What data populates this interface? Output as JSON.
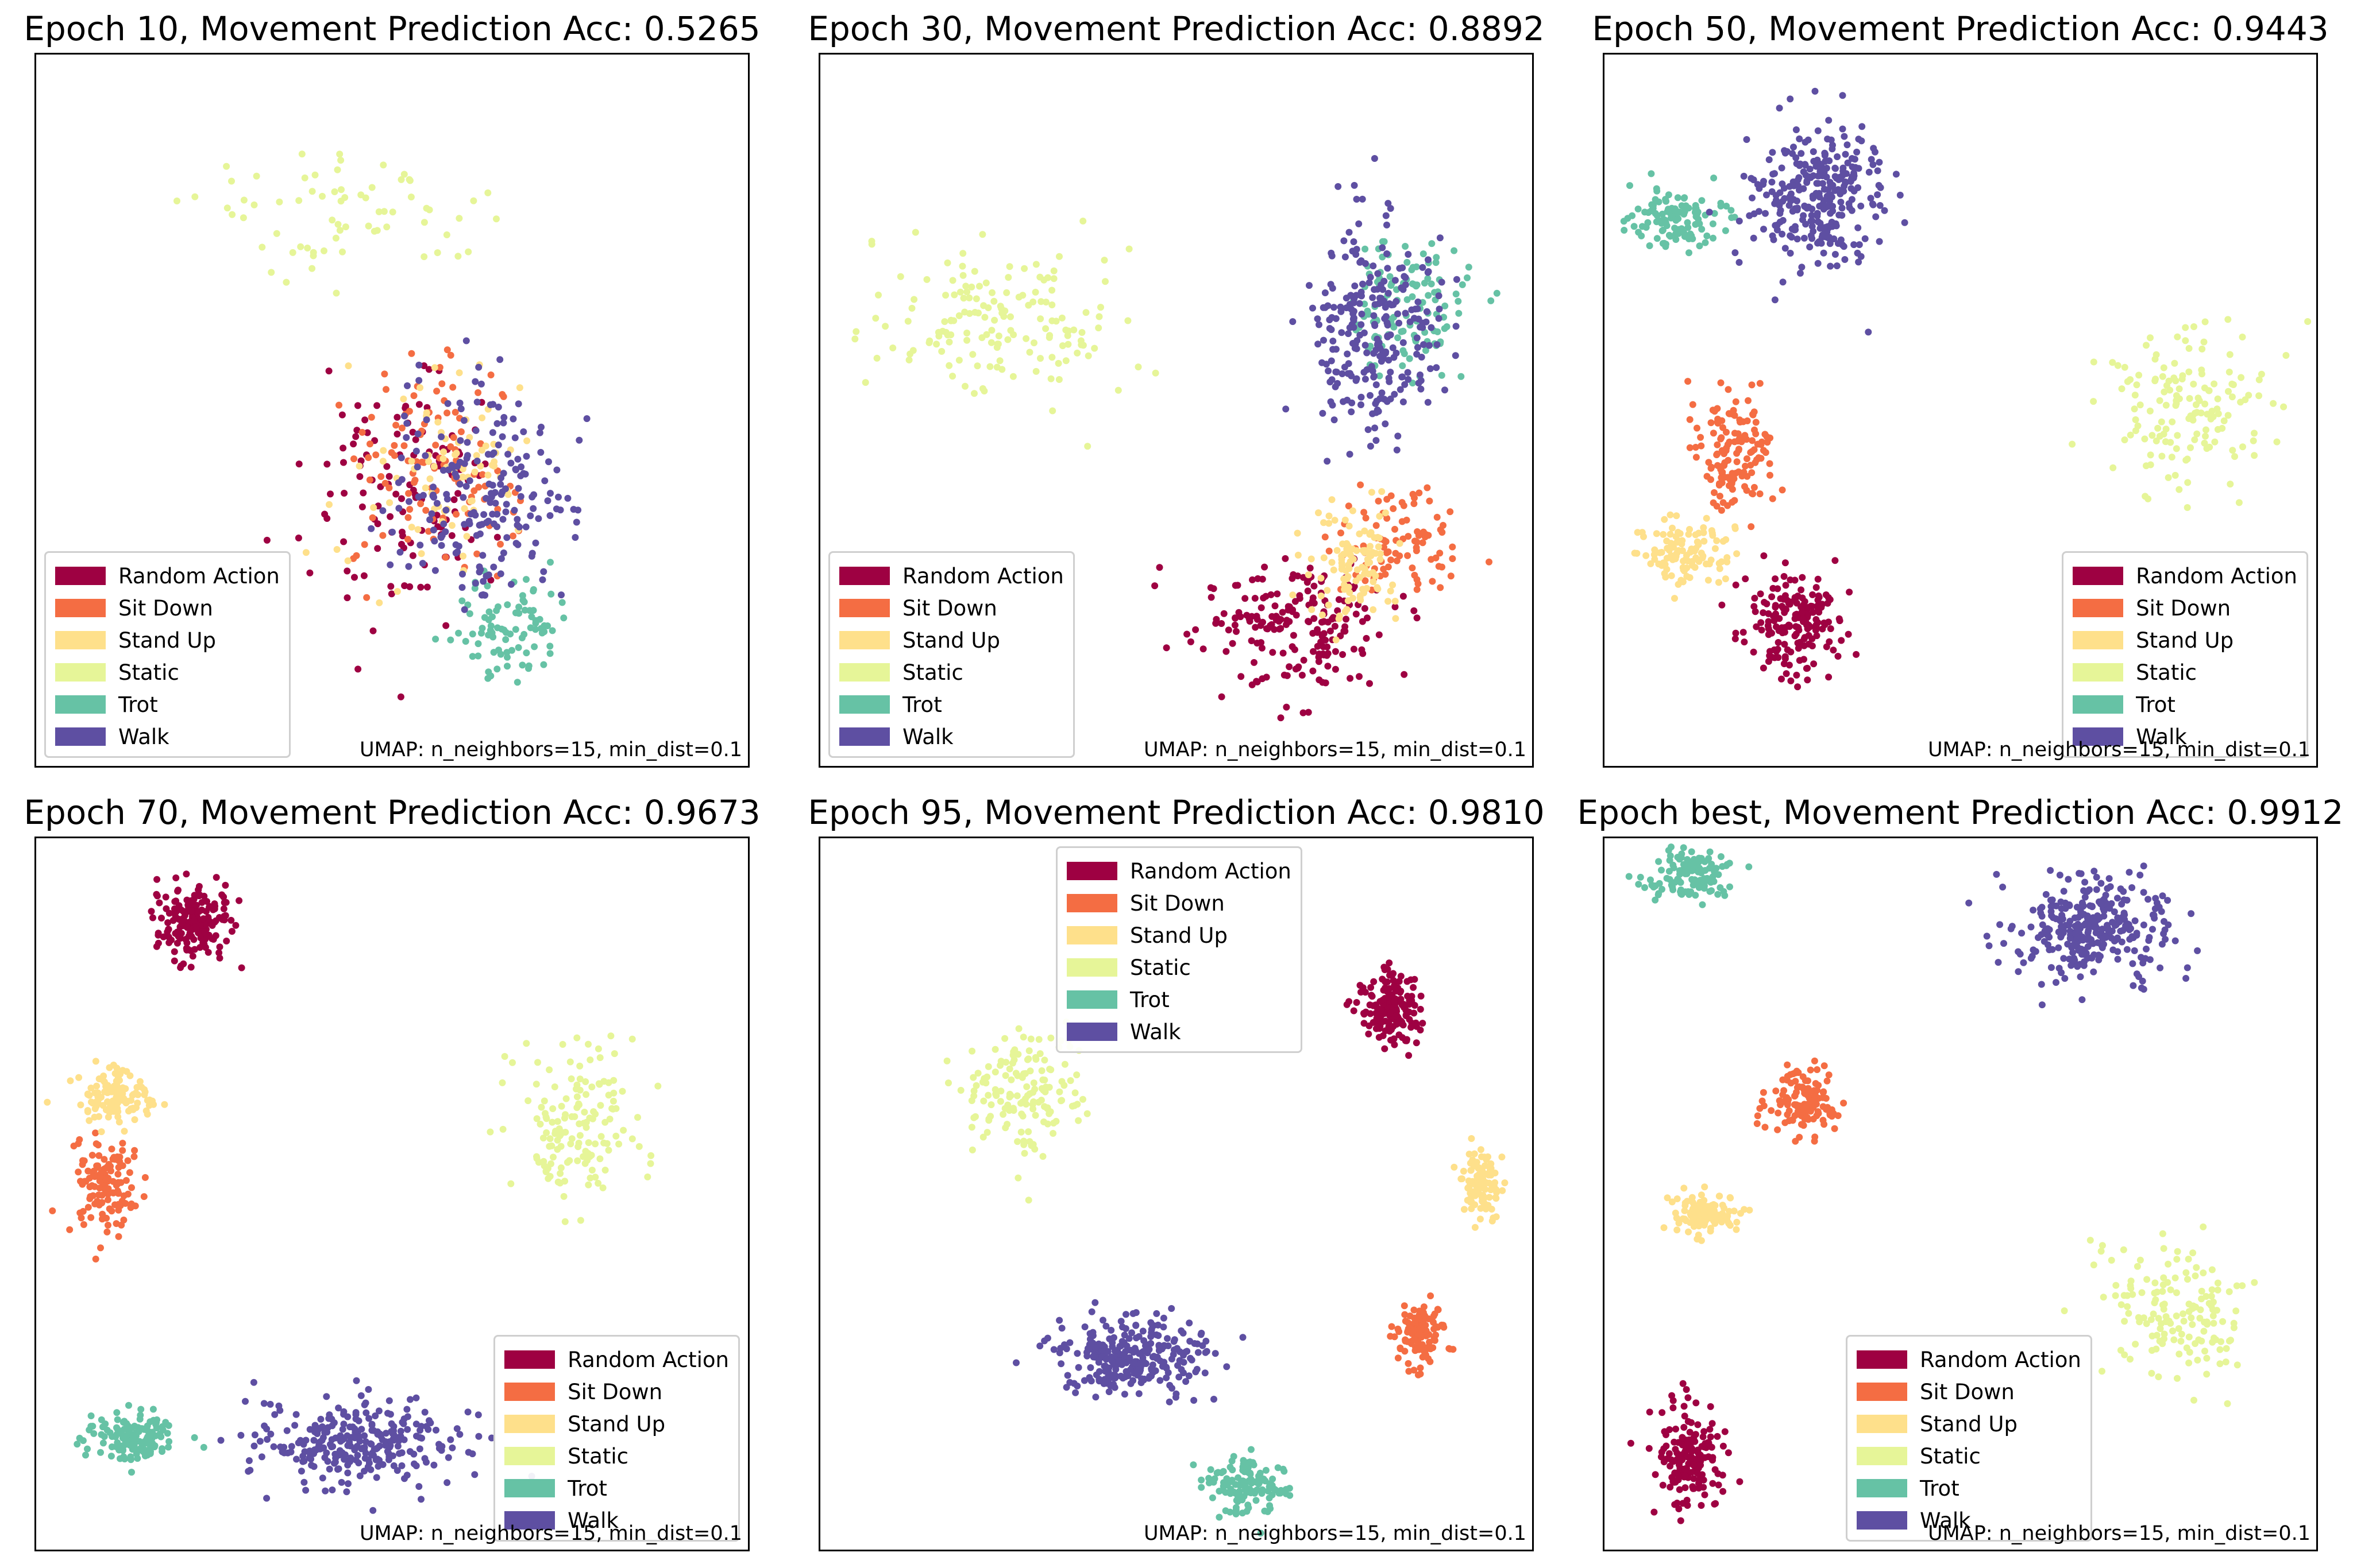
{
  "figure": {
    "footnote": "UMAP: n_neighbors=15, min_dist=0.1"
  },
  "legend": [
    {
      "label": "Random Action",
      "color": "#9e0142"
    },
    {
      "label": "Sit Down",
      "color": "#f46d43"
    },
    {
      "label": "Stand Up",
      "color": "#fee08b"
    },
    {
      "label": "Static",
      "color": "#e6f598"
    },
    {
      "label": "Trot",
      "color": "#66c2a5"
    },
    {
      "label": "Walk",
      "color": "#5e4fa2"
    }
  ],
  "chart_data": [
    {
      "type": "scatter",
      "title": "Epoch 10, Movement Prediction Acc: 0.5265",
      "epoch": "10",
      "accuracy": 0.5265,
      "legend_position": "lower-left",
      "grid": false,
      "clusters": [
        {
          "class": "Random Action",
          "center": [
            0.53,
            0.62
          ],
          "spread": [
            0.12,
            0.16
          ],
          "count": 120
        },
        {
          "class": "Sit Down",
          "center": [
            0.55,
            0.58
          ],
          "spread": [
            0.13,
            0.15
          ],
          "count": 110
        },
        {
          "class": "Stand Up",
          "center": [
            0.58,
            0.6
          ],
          "spread": [
            0.12,
            0.15
          ],
          "count": 80
        },
        {
          "class": "Static",
          "center": [
            0.45,
            0.22
          ],
          "spread": [
            0.2,
            0.1
          ],
          "count": 70
        },
        {
          "class": "Trot",
          "center": [
            0.66,
            0.8
          ],
          "spread": [
            0.08,
            0.06
          ],
          "count": 90
        },
        {
          "class": "Walk",
          "center": [
            0.62,
            0.62
          ],
          "spread": [
            0.12,
            0.14
          ],
          "count": 200
        }
      ]
    },
    {
      "type": "scatter",
      "title": "Epoch 30, Movement Prediction Acc: 0.8892",
      "epoch": "30",
      "accuracy": 0.8892,
      "legend_position": "lower-left",
      "grid": false,
      "clusters": [
        {
          "class": "Random Action",
          "center": [
            0.67,
            0.8
          ],
          "spread": [
            0.12,
            0.08
          ],
          "count": 200
        },
        {
          "class": "Sit Down",
          "center": [
            0.82,
            0.68
          ],
          "spread": [
            0.08,
            0.07
          ],
          "count": 90
        },
        {
          "class": "Stand Up",
          "center": [
            0.75,
            0.72
          ],
          "spread": [
            0.07,
            0.08
          ],
          "count": 110
        },
        {
          "class": "Static",
          "center": [
            0.25,
            0.38
          ],
          "spread": [
            0.16,
            0.1
          ],
          "count": 160
        },
        {
          "class": "Trot",
          "center": [
            0.82,
            0.35
          ],
          "spread": [
            0.08,
            0.1
          ],
          "count": 120
        },
        {
          "class": "Walk",
          "center": [
            0.78,
            0.38
          ],
          "spread": [
            0.08,
            0.14
          ],
          "count": 260
        }
      ]
    },
    {
      "type": "scatter",
      "title": "Epoch 50, Movement Prediction Acc: 0.9443",
      "epoch": "50",
      "accuracy": 0.9443,
      "legend_position": "lower-right",
      "grid": false,
      "clusters": [
        {
          "class": "Random Action",
          "center": [
            0.27,
            0.8
          ],
          "spread": [
            0.06,
            0.07
          ],
          "count": 180
        },
        {
          "class": "Sit Down",
          "center": [
            0.18,
            0.55
          ],
          "spread": [
            0.05,
            0.08
          ],
          "count": 140
        },
        {
          "class": "Stand Up",
          "center": [
            0.11,
            0.7
          ],
          "spread": [
            0.06,
            0.05
          ],
          "count": 110
        },
        {
          "class": "Static",
          "center": [
            0.82,
            0.5
          ],
          "spread": [
            0.1,
            0.1
          ],
          "count": 150
        },
        {
          "class": "Trot",
          "center": [
            0.1,
            0.23
          ],
          "spread": [
            0.06,
            0.04
          ],
          "count": 110
        },
        {
          "class": "Walk",
          "center": [
            0.3,
            0.2
          ],
          "spread": [
            0.09,
            0.09
          ],
          "count": 300
        }
      ]
    },
    {
      "type": "scatter",
      "title": "Epoch 70, Movement Prediction Acc: 0.9673",
      "epoch": "70",
      "accuracy": 0.9673,
      "legend_position": "lower-right",
      "grid": false,
      "clusters": [
        {
          "class": "Random Action",
          "center": [
            0.22,
            0.12
          ],
          "spread": [
            0.05,
            0.05
          ],
          "count": 180
        },
        {
          "class": "Sit Down",
          "center": [
            0.1,
            0.49
          ],
          "spread": [
            0.04,
            0.06
          ],
          "count": 130
        },
        {
          "class": "Stand Up",
          "center": [
            0.11,
            0.36
          ],
          "spread": [
            0.05,
            0.04
          ],
          "count": 120
        },
        {
          "class": "Static",
          "center": [
            0.76,
            0.4
          ],
          "spread": [
            0.07,
            0.1
          ],
          "count": 150
        },
        {
          "class": "Trot",
          "center": [
            0.14,
            0.84
          ],
          "spread": [
            0.06,
            0.03
          ],
          "count": 140
        },
        {
          "class": "Walk",
          "center": [
            0.45,
            0.85
          ],
          "spread": [
            0.13,
            0.06
          ],
          "count": 280
        }
      ]
    },
    {
      "type": "scatter",
      "title": "Epoch 95, Movement Prediction Acc: 0.9810",
      "epoch": "95",
      "accuracy": 0.981,
      "legend_position": "upper-center",
      "grid": false,
      "clusters": [
        {
          "class": "Random Action",
          "center": [
            0.8,
            0.24
          ],
          "spread": [
            0.04,
            0.05
          ],
          "count": 170
        },
        {
          "class": "Sit Down",
          "center": [
            0.84,
            0.7
          ],
          "spread": [
            0.03,
            0.04
          ],
          "count": 120
        },
        {
          "class": "Stand Up",
          "center": [
            0.93,
            0.49
          ],
          "spread": [
            0.025,
            0.05
          ],
          "count": 100
        },
        {
          "class": "Static",
          "center": [
            0.29,
            0.36
          ],
          "spread": [
            0.08,
            0.08
          ],
          "count": 150
        },
        {
          "class": "Trot",
          "center": [
            0.6,
            0.91
          ],
          "spread": [
            0.05,
            0.04
          ],
          "count": 130
        },
        {
          "class": "Walk",
          "center": [
            0.44,
            0.73
          ],
          "spread": [
            0.1,
            0.05
          ],
          "count": 280
        }
      ]
    },
    {
      "type": "scatter",
      "title": "Epoch best, Movement Prediction Acc: 0.9912",
      "epoch": "best",
      "accuracy": 0.9912,
      "legend_position": "lower-center",
      "grid": false,
      "clusters": [
        {
          "class": "Random Action",
          "center": [
            0.12,
            0.87
          ],
          "spread": [
            0.05,
            0.06
          ],
          "count": 170
        },
        {
          "class": "Sit Down",
          "center": [
            0.28,
            0.37
          ],
          "spread": [
            0.04,
            0.04
          ],
          "count": 130
        },
        {
          "class": "Stand Up",
          "center": [
            0.14,
            0.53
          ],
          "spread": [
            0.05,
            0.025
          ],
          "count": 110
        },
        {
          "class": "Static",
          "center": [
            0.8,
            0.66
          ],
          "spread": [
            0.1,
            0.09
          ],
          "count": 150
        },
        {
          "class": "Trot",
          "center": [
            0.12,
            0.05
          ],
          "spread": [
            0.05,
            0.035
          ],
          "count": 130
        },
        {
          "class": "Walk",
          "center": [
            0.68,
            0.13
          ],
          "spread": [
            0.1,
            0.06
          ],
          "count": 300
        }
      ]
    }
  ]
}
